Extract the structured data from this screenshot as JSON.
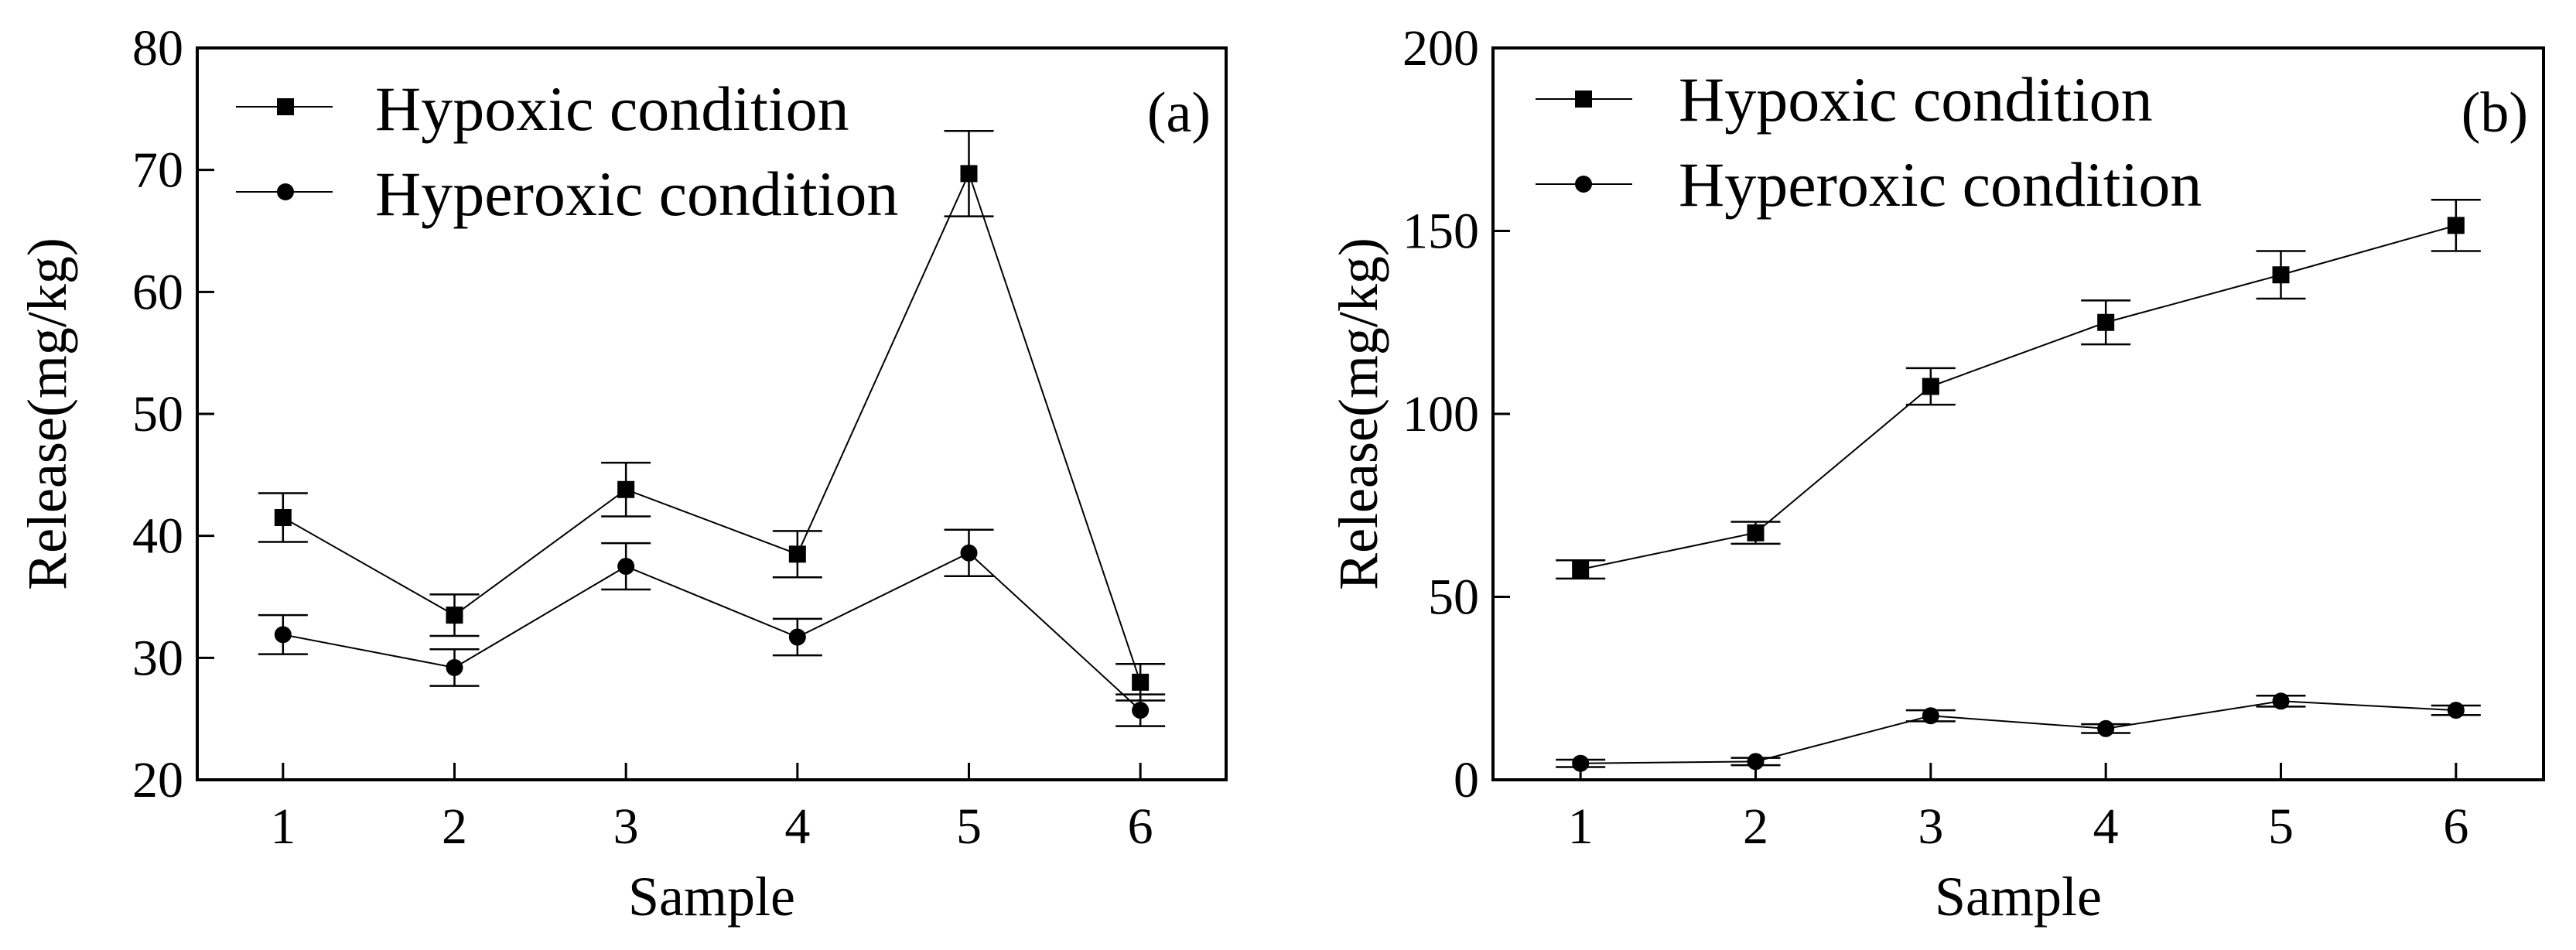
{
  "figure": {
    "colors": {
      "line": "#000000",
      "background": "#ffffff"
    }
  },
  "chart_data": [
    {
      "type": "line",
      "panel_label": "(a)",
      "xlabel": "Sample",
      "ylabel": "Release(mg/kg)",
      "x": [
        1,
        2,
        3,
        4,
        5,
        6
      ],
      "xticks": [
        "1",
        "2",
        "3",
        "4",
        "5",
        "6"
      ],
      "xlim": [
        0.5,
        6.5
      ],
      "ylim": [
        20,
        80
      ],
      "yticks": [
        "20",
        "30",
        "40",
        "50",
        "60",
        "70",
        "80"
      ],
      "grid": false,
      "legend_position": "top-left",
      "series": [
        {
          "name": "Hypoxic condition",
          "marker": "square",
          "values": [
            41.5,
            33.5,
            43.8,
            38.5,
            69.7,
            28.0
          ],
          "errors": [
            2.0,
            1.7,
            2.2,
            1.9,
            3.5,
            1.5
          ]
        },
        {
          "name": "Hyperoxic condition",
          "marker": "circle",
          "values": [
            31.9,
            29.2,
            37.5,
            31.7,
            38.6,
            25.7
          ],
          "errors": [
            1.6,
            1.5,
            1.9,
            1.5,
            1.9,
            1.3
          ]
        }
      ]
    },
    {
      "type": "line",
      "panel_label": "(b)",
      "xlabel": "Sample",
      "ylabel": "Release(mg/kg)",
      "x": [
        1,
        2,
        3,
        4,
        5,
        6
      ],
      "xticks": [
        "1",
        "2",
        "3",
        "4",
        "5",
        "6"
      ],
      "xlim": [
        0.5,
        6.5
      ],
      "ylim": [
        0,
        200
      ],
      "yticks": [
        "0",
        "50",
        "100",
        "150",
        "200"
      ],
      "grid": false,
      "legend_position": "top-left",
      "series": [
        {
          "name": "Hypoxic condition",
          "marker": "square",
          "values": [
            57.5,
            67.5,
            107.5,
            125.0,
            138.0,
            151.5
          ],
          "errors": [
            2.5,
            3.0,
            5.0,
            6.0,
            6.5,
            7.0
          ]
        },
        {
          "name": "Hyperoxic condition",
          "marker": "circle",
          "values": [
            4.5,
            5.0,
            17.5,
            14.0,
            21.5,
            19.0
          ],
          "errors": [
            1.0,
            1.0,
            1.5,
            1.2,
            1.5,
            1.3
          ]
        }
      ]
    }
  ]
}
